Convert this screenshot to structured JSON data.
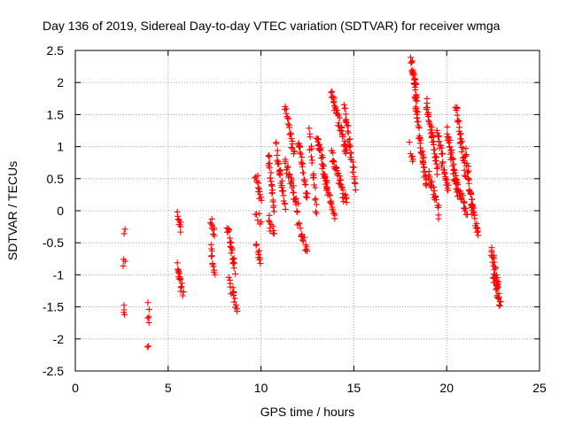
{
  "chart_data": {
    "type": "scatter",
    "title": "Day 136 of 2019, Sidereal Day-to-day VTEC variation (SDTVAR) for receiver wmga",
    "xlabel": "GPS time / hours",
    "ylabel": "SDTVAR / TECUs",
    "xlim": [
      0,
      25
    ],
    "ylim": [
      -2.5,
      2.5
    ],
    "xticks": [
      "0",
      "5",
      "10",
      "15",
      "20",
      "25"
    ],
    "yticks": [
      "2.5",
      "2",
      "1.5",
      "1",
      "0.5",
      "0",
      "-0.5",
      "-1",
      "-1.5",
      "-2",
      "-2.5"
    ],
    "grid": true,
    "marker": "+",
    "series_color": "#ff0000",
    "clusters": [
      {
        "x0": 2.6,
        "x1": 2.65,
        "y0": -0.35,
        "y1": -0.35,
        "n": 2
      },
      {
        "x0": 2.6,
        "x1": 2.65,
        "y0": -0.82,
        "y1": -0.85,
        "n": 3
      },
      {
        "x0": 2.6,
        "x1": 2.65,
        "y0": -1.5,
        "y1": -1.65,
        "n": 4
      },
      {
        "x0": 3.9,
        "x1": 3.95,
        "y0": -1.42,
        "y1": -1.45,
        "n": 2
      },
      {
        "x0": 3.9,
        "x1": 3.95,
        "y0": -1.6,
        "y1": -1.7,
        "n": 3
      },
      {
        "x0": 3.9,
        "x1": 3.95,
        "y0": -2.12,
        "y1": -2.18,
        "n": 2
      },
      {
        "x0": 5.5,
        "x1": 5.7,
        "y0": -0.05,
        "y1": -0.3,
        "n": 10
      },
      {
        "x0": 5.5,
        "x1": 5.8,
        "y0": -0.85,
        "y1": -1.3,
        "n": 18
      },
      {
        "x0": 7.3,
        "x1": 7.5,
        "y0": -0.1,
        "y1": -0.4,
        "n": 10
      },
      {
        "x0": 7.3,
        "x1": 7.5,
        "y0": -0.55,
        "y1": -1.0,
        "n": 12
      },
      {
        "x0": 8.2,
        "x1": 8.6,
        "y0": -0.25,
        "y1": -0.9,
        "n": 22
      },
      {
        "x0": 8.3,
        "x1": 8.7,
        "y0": -1.1,
        "y1": -1.55,
        "n": 16
      },
      {
        "x0": 9.7,
        "x1": 10.0,
        "y0": 0.6,
        "y1": 0.15,
        "n": 14
      },
      {
        "x0": 9.7,
        "x1": 10.0,
        "y0": -0.05,
        "y1": -0.15,
        "n": 6
      },
      {
        "x0": 9.7,
        "x1": 10.0,
        "y0": -0.5,
        "y1": -0.85,
        "n": 10
      },
      {
        "x0": 10.4,
        "x1": 10.7,
        "y0": 0.9,
        "y1": 0.0,
        "n": 22
      },
      {
        "x0": 10.4,
        "x1": 10.7,
        "y0": -0.1,
        "y1": -0.4,
        "n": 10
      },
      {
        "x0": 10.8,
        "x1": 11.3,
        "y0": 1.0,
        "y1": 0.05,
        "n": 28
      },
      {
        "x0": 11.3,
        "x1": 11.8,
        "y0": 1.6,
        "y1": 0.9,
        "n": 22
      },
      {
        "x0": 11.3,
        "x1": 12.0,
        "y0": 0.8,
        "y1": 0.0,
        "n": 30
      },
      {
        "x0": 12.0,
        "x1": 12.5,
        "y0": 1.1,
        "y1": 0.2,
        "n": 26
      },
      {
        "x0": 12.0,
        "x1": 12.5,
        "y0": -0.2,
        "y1": -0.65,
        "n": 16
      },
      {
        "x0": 12.6,
        "x1": 13.0,
        "y0": 1.2,
        "y1": 0.0,
        "n": 20
      },
      {
        "x0": 13.0,
        "x1": 13.6,
        "y0": 1.2,
        "y1": 0.3,
        "n": 32
      },
      {
        "x0": 13.4,
        "x1": 14.0,
        "y0": 0.6,
        "y1": -0.15,
        "n": 22
      },
      {
        "x0": 13.8,
        "x1": 14.6,
        "y0": 1.85,
        "y1": 0.9,
        "n": 40
      },
      {
        "x0": 13.8,
        "x1": 14.6,
        "y0": 0.9,
        "y1": 0.1,
        "n": 36
      },
      {
        "x0": 14.5,
        "x1": 15.1,
        "y0": 1.6,
        "y1": 0.4,
        "n": 34
      },
      {
        "x0": 18.1,
        "x1": 18.4,
        "y0": 2.32,
        "y1": 1.75,
        "n": 30
      },
      {
        "x0": 18.3,
        "x1": 18.9,
        "y0": 1.7,
        "y1": 0.4,
        "n": 44
      },
      {
        "x0": 18.0,
        "x1": 18.2,
        "y0": 1.0,
        "y1": 0.7,
        "n": 6
      },
      {
        "x0": 18.9,
        "x1": 19.5,
        "y0": 1.7,
        "y1": 0.6,
        "n": 36
      },
      {
        "x0": 19.0,
        "x1": 19.6,
        "y0": 0.6,
        "y1": -0.05,
        "n": 22
      },
      {
        "x0": 19.5,
        "x1": 20.1,
        "y0": 1.2,
        "y1": 0.3,
        "n": 32
      },
      {
        "x0": 20.0,
        "x1": 20.6,
        "y0": 1.3,
        "y1": 0.3,
        "n": 34
      },
      {
        "x0": 20.5,
        "x1": 21.0,
        "y0": 1.65,
        "y1": 0.6,
        "n": 32
      },
      {
        "x0": 20.4,
        "x1": 21.1,
        "y0": 0.6,
        "y1": -0.1,
        "n": 26
      },
      {
        "x0": 21.0,
        "x1": 21.4,
        "y0": 0.9,
        "y1": 0.0,
        "n": 26
      },
      {
        "x0": 21.3,
        "x1": 21.7,
        "y0": 0.2,
        "y1": -0.4,
        "n": 20
      },
      {
        "x0": 22.4,
        "x1": 22.8,
        "y0": -0.6,
        "y1": -1.2,
        "n": 26
      },
      {
        "x0": 22.5,
        "x1": 22.9,
        "y0": -1.0,
        "y1": -1.5,
        "n": 22
      }
    ]
  }
}
